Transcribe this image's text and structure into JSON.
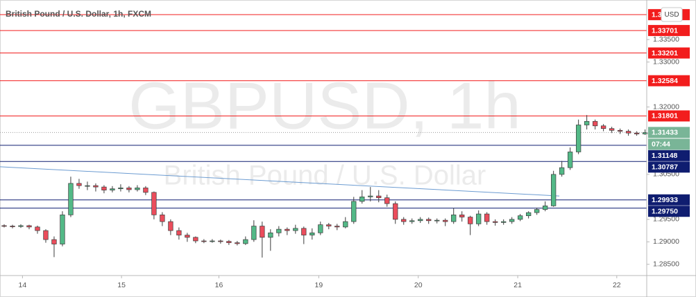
{
  "chart_data": {
    "type": "candlestick",
    "title": "British Pound / U.S. Dollar, 1h, FXCM",
    "watermark": "GBPUSD, 1h",
    "watermark_subtitle": "British Pound / U.S. Dollar",
    "currency": "USD",
    "up_color": "#53b987",
    "down_color": "#eb4d5c",
    "candles": [
      [
        1.2936,
        1.2939,
        1.2932,
        1.2935
      ],
      [
        1.2935,
        1.2938,
        1.293,
        1.2934
      ],
      [
        1.2934,
        1.2939,
        1.2931,
        1.2936
      ],
      [
        1.2936,
        1.2938,
        1.2928,
        1.2933
      ],
      [
        1.2933,
        1.2936,
        1.2918,
        1.2925
      ],
      [
        1.2925,
        1.2928,
        1.2898,
        1.2905
      ],
      [
        1.2905,
        1.2912,
        1.2866,
        1.2895
      ],
      [
        1.2895,
        1.2968,
        1.289,
        1.296
      ],
      [
        1.296,
        1.3045,
        1.2955,
        1.303
      ],
      [
        1.303,
        1.304,
        1.3018,
        1.3025
      ],
      [
        1.3025,
        1.3034,
        1.3015,
        1.3025
      ],
      [
        1.3025,
        1.303,
        1.3012,
        1.3022
      ],
      [
        1.3022,
        1.3026,
        1.3008,
        1.3015
      ],
      [
        1.3015,
        1.3024,
        1.301,
        1.3018
      ],
      [
        1.3018,
        1.3028,
        1.3012,
        1.302
      ],
      [
        1.302,
        1.3024,
        1.301,
        1.3016
      ],
      [
        1.3016,
        1.3026,
        1.3012,
        1.302
      ],
      [
        1.302,
        1.3024,
        1.3004,
        1.301
      ],
      [
        1.301,
        1.3012,
        1.295,
        1.296
      ],
      [
        1.296,
        1.2966,
        1.2935,
        1.2945
      ],
      [
        1.2945,
        1.295,
        1.2915,
        1.2925
      ],
      [
        1.2925,
        1.2932,
        1.2905,
        1.2915
      ],
      [
        1.2915,
        1.292,
        1.29,
        1.291
      ],
      [
        1.291,
        1.2912,
        1.2897,
        1.2902
      ],
      [
        1.2902,
        1.2906,
        1.2897,
        1.2901
      ],
      [
        1.2901,
        1.2906,
        1.2898,
        1.2902
      ],
      [
        1.2902,
        1.2905,
        1.2896,
        1.2901
      ],
      [
        1.2901,
        1.2904,
        1.2893,
        1.2898
      ],
      [
        1.2898,
        1.2902,
        1.2892,
        1.2896
      ],
      [
        1.2896,
        1.2912,
        1.2893,
        1.2905
      ],
      [
        1.2905,
        1.2948,
        1.29,
        1.2935
      ],
      [
        1.2935,
        1.2945,
        1.2865,
        1.291
      ],
      [
        1.291,
        1.2928,
        1.288,
        1.292
      ],
      [
        1.292,
        1.2935,
        1.2912,
        1.2928
      ],
      [
        1.2928,
        1.2932,
        1.2915,
        1.2925
      ],
      [
        1.2925,
        1.2938,
        1.2918,
        1.293
      ],
      [
        1.293,
        1.2934,
        1.2895,
        1.2915
      ],
      [
        1.2915,
        1.293,
        1.2905,
        1.292
      ],
      [
        1.292,
        1.2945,
        1.2915,
        1.2938
      ],
      [
        1.2938,
        1.2942,
        1.2928,
        1.2935
      ],
      [
        1.2935,
        1.294,
        1.2926,
        1.2933
      ],
      [
        1.2933,
        1.2955,
        1.293,
        1.2945
      ],
      [
        1.2945,
        1.3,
        1.294,
        1.299
      ],
      [
        1.299,
        1.3015,
        1.2985,
        1.3
      ],
      [
        1.3,
        1.3022,
        1.299,
        1.3002
      ],
      [
        1.3002,
        1.3015,
        1.2988,
        1.2998
      ],
      [
        1.2998,
        1.3005,
        1.2978,
        1.2985
      ],
      [
        1.2985,
        1.299,
        1.294,
        1.295
      ],
      [
        1.295,
        1.2955,
        1.2938,
        1.2945
      ],
      [
        1.2945,
        1.2952,
        1.294,
        1.2947
      ],
      [
        1.2947,
        1.2955,
        1.2942,
        1.295
      ],
      [
        1.295,
        1.2954,
        1.294,
        1.2947
      ],
      [
        1.2947,
        1.2952,
        1.2941,
        1.2948
      ],
      [
        1.2948,
        1.2952,
        1.2935,
        1.2945
      ],
      [
        1.2945,
        1.2975,
        1.294,
        1.296
      ],
      [
        1.296,
        1.2968,
        1.2945,
        1.2955
      ],
      [
        1.2955,
        1.2958,
        1.2915,
        1.294
      ],
      [
        1.294,
        1.297,
        1.2935,
        1.2962
      ],
      [
        1.2962,
        1.2966,
        1.2938,
        1.2945
      ],
      [
        1.2945,
        1.295,
        1.2936,
        1.2943
      ],
      [
        1.2943,
        1.295,
        1.2938,
        1.2945
      ],
      [
        1.2945,
        1.2955,
        1.294,
        1.295
      ],
      [
        1.295,
        1.2962,
        1.2946,
        1.2958
      ],
      [
        1.2958,
        1.2968,
        1.2952,
        1.2965
      ],
      [
        1.2965,
        1.2976,
        1.296,
        1.2972
      ],
      [
        1.2972,
        1.299,
        1.2968,
        1.298
      ],
      [
        1.298,
        1.3058,
        1.2978,
        1.305
      ],
      [
        1.305,
        1.308,
        1.3045,
        1.3065
      ],
      [
        1.3065,
        1.311,
        1.306,
        1.31
      ],
      [
        1.31,
        1.3172,
        1.3095,
        1.316
      ],
      [
        1.316,
        1.3182,
        1.315,
        1.3168
      ],
      [
        1.3168,
        1.3172,
        1.315,
        1.3158
      ],
      [
        1.3158,
        1.3162,
        1.3146,
        1.3152
      ],
      [
        1.3152,
        1.3156,
        1.3142,
        1.3148
      ],
      [
        1.3148,
        1.3152,
        1.314,
        1.3146
      ],
      [
        1.3146,
        1.315,
        1.3136,
        1.3142
      ],
      [
        1.3142,
        1.3146,
        1.3136,
        1.314
      ],
      [
        1.314,
        1.315,
        1.3138,
        1.3143
      ]
    ],
    "xlim": [
      -0.5,
      77.2
    ],
    "xticks": [
      {
        "value": 2.2,
        "label": "14"
      },
      {
        "value": 14.1,
        "label": "15"
      },
      {
        "value": 25.8,
        "label": "16"
      },
      {
        "value": 37.8,
        "label": "19"
      },
      {
        "value": 49.75,
        "label": "20"
      },
      {
        "value": 61.7,
        "label": "21"
      },
      {
        "value": 73.6,
        "label": "22"
      }
    ],
    "ylim": [
      1.2825,
      1.3438
    ],
    "yticks": [
      {
        "value": 1.285,
        "label": "1.28500"
      },
      {
        "value": 1.29,
        "label": "1.29000"
      },
      {
        "value": 1.295,
        "label": "1.29500"
      },
      {
        "value": 1.305,
        "label": "1.30500"
      },
      {
        "value": 1.32,
        "label": "1.32000"
      },
      {
        "value": 1.33,
        "label": "1.33000"
      },
      {
        "value": 1.335,
        "label": "1.33500"
      }
    ],
    "levels": [
      {
        "value": 1.34054,
        "color": "#f21d1d"
      },
      {
        "value": 1.33701,
        "color": "#f21d1d"
      },
      {
        "value": 1.33201,
        "color": "#f21d1d"
      },
      {
        "value": 1.32584,
        "color": "#f21d1d"
      },
      {
        "value": 1.31801,
        "color": "#f21d1d"
      },
      {
        "value": 1.31148,
        "color": "#0f1d70"
      },
      {
        "value": 1.30787,
        "color": "#0f1d70"
      },
      {
        "value": 1.29933,
        "color": "#0f1d70"
      },
      {
        "value": 1.2975,
        "label": "1.29750",
        "color": "#0f1d70"
      }
    ],
    "trendline": {
      "x": [
        -0.5,
        66.7
      ],
      "y": [
        1.3067,
        1.3002
      ],
      "color": "#6b9bd1"
    },
    "last_price": 1.31433,
    "last_price_color": "#79b597",
    "countdown": "07:44"
  }
}
